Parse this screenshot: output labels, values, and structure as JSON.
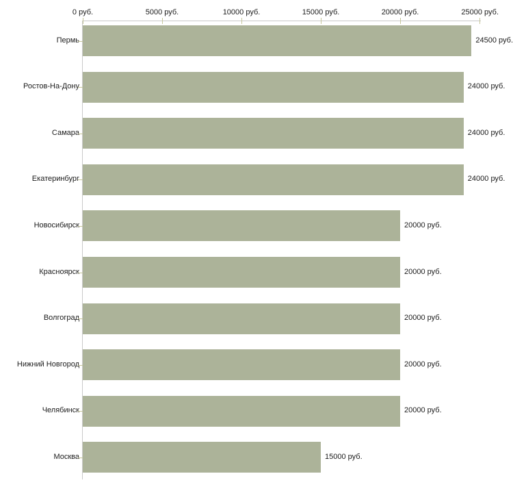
{
  "chart_data": {
    "type": "bar",
    "orientation": "horizontal",
    "title": "",
    "xlabel": "",
    "ylabel": "",
    "legend": "none",
    "grid": "off",
    "currency_unit": "руб.",
    "categories": [
      "Пермь",
      "Ростов-На-Дону",
      "Самара",
      "Екатеринбург",
      "Новосибирск",
      "Красноярск",
      "Волгоград",
      "Нижний Новгород",
      "Челябинск",
      "Москва"
    ],
    "values": [
      24500,
      24000,
      24000,
      24000,
      20000,
      20000,
      20000,
      20000,
      20000,
      15000
    ],
    "value_labels": [
      "24500 руб.",
      "24000 руб.",
      "24000 руб.",
      "24000 руб.",
      "20000 руб.",
      "20000 руб.",
      "20000 руб.",
      "20000 руб.",
      "20000 руб.",
      "15000 руб."
    ],
    "x_axis": {
      "position": "top",
      "min": 0,
      "max": 25000,
      "ticks": [
        0,
        5000,
        10000,
        15000,
        20000,
        25000
      ],
      "tick_labels": [
        "0 руб.",
        "5000 руб.",
        "10000 руб.",
        "15000 руб.",
        "20000 руб.",
        "25000 руб."
      ]
    },
    "colors": {
      "bar": "#acb399",
      "axis_line": "#c9c9c9",
      "tick_mark": "#c6c69a",
      "text": "#1a1a1a",
      "background": "#ffffff"
    }
  }
}
